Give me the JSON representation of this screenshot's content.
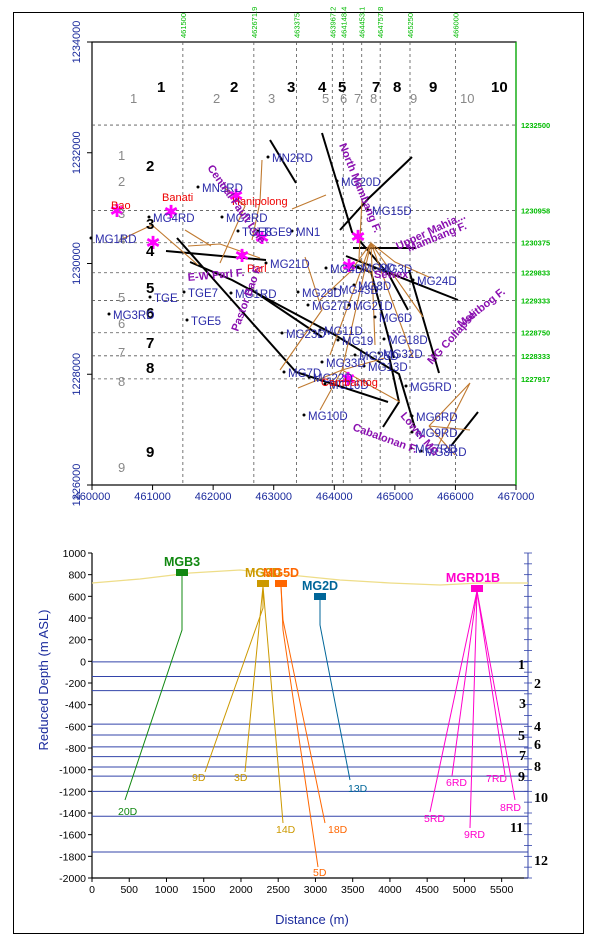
{
  "map": {
    "x_ticks": [
      "460000",
      "461000",
      "462000",
      "463000",
      "464000",
      "465000",
      "466000",
      "467000"
    ],
    "y_ticks": [
      "1234000",
      "1232000",
      "1230000",
      "1228000",
      "1226000"
    ],
    "top_ticks": [
      "461500",
      "462671.9",
      "463375",
      "463967.2",
      "464148.4",
      "464453.1",
      "464757.8",
      "465250",
      "466000"
    ],
    "right_ticks": [
      "1232500",
      "1230958",
      "1230375",
      "1229833",
      "1229333",
      "1228750",
      "1228333",
      "1227917"
    ],
    "col_numbers": [
      "1",
      "2",
      "3",
      "4",
      "5",
      "7",
      "8",
      "9",
      "10"
    ],
    "col_numbers_grey": [
      "1",
      "2",
      "3",
      "5",
      "6",
      "7",
      "8",
      "9",
      "10"
    ],
    "row_numbers": [
      "2",
      "3",
      "4",
      "5",
      "6",
      "7",
      "8",
      "9"
    ],
    "row_numbers_grey": [
      "1",
      "2",
      "3",
      "4",
      "5",
      "6",
      "7",
      "8",
      "9"
    ],
    "wells": [
      "MN2RD",
      "MN3RD",
      "MG4RD",
      "MG2RD",
      "TGE8",
      "TGE9",
      "MN1",
      "MG20D",
      "MG15D",
      "MG1RD",
      "MG21D",
      "MG9D",
      "MG4D",
      "MG3D",
      "MG24D",
      "TGE7",
      "MG1RD",
      "MG29D",
      "MG43D",
      "MG27D",
      "MG8D",
      "MG21D",
      "MG6D",
      "MG3RD",
      "TGE5",
      "MG23D",
      "MG11D",
      "MG19",
      "MG18D",
      "MG32D",
      "MG13D",
      "MG7D",
      "MG22D",
      "MG16D",
      "MG33D",
      "MG25D",
      "MG5RD",
      "MG10D",
      "MG6RD",
      "MG9RD",
      "MG7RD",
      "MG8RD",
      "TGE"
    ],
    "places": [
      "Bao",
      "Banati",
      "Hanipolong",
      "Parl",
      "Cambantog"
    ],
    "faults": [
      "Central Fault Line",
      "North Mambang F.",
      "Mambang F.",
      "Upper Mahia...",
      "E-W Parl F.",
      "Malitbog F.",
      "MG Collapse",
      "Pastor Bao F.",
      "Cabalonan F.",
      "Sewex",
      "Lower MG"
    ]
  },
  "profile": {
    "y_label": "Reduced Depth (m ASL)",
    "x_label": "Distance (m)",
    "x_ticks": [
      "0",
      "500",
      "1000",
      "1500",
      "2000",
      "2500",
      "3000",
      "3500",
      "4000",
      "4500",
      "5000",
      "5500"
    ],
    "y_ticks": [
      "1000",
      "800",
      "600",
      "400",
      "200",
      "0",
      "-200",
      "-400",
      "-600",
      "-800",
      "-1000",
      "-1200",
      "-1400",
      "-1600",
      "-1800",
      "-2000"
    ],
    "pads": [
      "MGB3",
      "MG3D",
      "MG5D",
      "MG2D",
      "MGRD1B"
    ],
    "pad_colors": [
      "#118811",
      "#cc9900",
      "#ff6600",
      "#006699",
      "#ff00cc"
    ],
    "well_labels": [
      "20D",
      "9D",
      "3D",
      "14D",
      "18D",
      "5D",
      "13D",
      "5RD",
      "6RD",
      "9RD",
      "7RD",
      "8RD"
    ],
    "layers": [
      "1",
      "2",
      "3",
      "4",
      "5",
      "6",
      "7",
      "8",
      "9",
      "10",
      "11",
      "12"
    ]
  }
}
